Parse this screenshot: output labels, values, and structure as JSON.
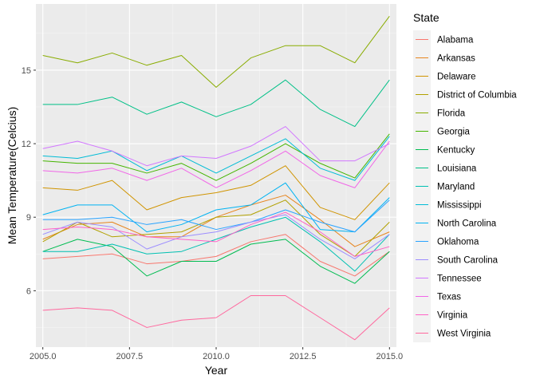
{
  "chart_data": {
    "type": "line",
    "xlabel": "Year",
    "ylabel": "Mean Temperature(Celcius)",
    "xlim": [
      2004.8,
      2015.2
    ],
    "ylim": [
      3.7,
      17.7
    ],
    "x_ticks": [
      2005.0,
      2007.5,
      2010.0,
      2012.5,
      2015.0
    ],
    "x_tick_labels": [
      "2005.0",
      "2007.5",
      "2010.0",
      "2012.5",
      "2015.0"
    ],
    "y_ticks": [
      6,
      9,
      12,
      15
    ],
    "y_tick_labels": [
      "6",
      "9",
      "12",
      "15"
    ],
    "grid": true,
    "panel_background": "#ebebeb",
    "legend": {
      "title": "State",
      "position": "right"
    },
    "x": [
      2005,
      2006,
      2007,
      2008,
      2009,
      2010,
      2011,
      2012,
      2013,
      2014,
      2015
    ],
    "series": [
      {
        "name": "Alabama",
        "color": "#F8766D",
        "values": [
          7.3,
          7.4,
          7.5,
          7.1,
          7.2,
          7.4,
          8.0,
          8.3,
          7.2,
          6.6,
          7.6
        ]
      },
      {
        "name": "Arkansas",
        "color": "#E7851E",
        "values": [
          8.1,
          8.7,
          8.8,
          8.2,
          8.2,
          9.0,
          9.5,
          9.9,
          8.9,
          7.8,
          8.4
        ]
      },
      {
        "name": "Delaware",
        "color": "#D09400",
        "values": [
          10.2,
          10.1,
          10.5,
          9.3,
          9.8,
          10.0,
          10.3,
          11.1,
          9.4,
          8.9,
          10.4
        ]
      },
      {
        "name": "District of Columbia",
        "color": "#B2A100",
        "values": [
          8.0,
          8.8,
          8.2,
          8.3,
          8.4,
          9.0,
          9.1,
          9.7,
          8.3,
          7.4,
          8.8
        ]
      },
      {
        "name": "Florida",
        "color": "#89AC00",
        "values": [
          15.6,
          15.3,
          15.7,
          15.2,
          15.6,
          14.3,
          15.5,
          16.0,
          16.0,
          15.3,
          17.2
        ]
      },
      {
        "name": "Georgia",
        "color": "#45B500",
        "values": [
          11.3,
          11.2,
          11.2,
          10.8,
          11.2,
          10.5,
          11.2,
          12.0,
          11.2,
          10.6,
          12.4
        ]
      },
      {
        "name": "Kentucky",
        "color": "#00BC51",
        "values": [
          7.6,
          8.1,
          7.8,
          6.6,
          7.2,
          7.2,
          7.9,
          8.1,
          7.0,
          6.3,
          7.6
        ]
      },
      {
        "name": "Louisiana",
        "color": "#00C087",
        "values": [
          13.6,
          13.6,
          13.9,
          13.2,
          13.7,
          13.1,
          13.6,
          14.6,
          13.4,
          12.7,
          14.6
        ]
      },
      {
        "name": "Maryland",
        "color": "#00C0B2",
        "values": [
          7.6,
          7.6,
          7.9,
          7.5,
          7.6,
          8.1,
          8.6,
          9.0,
          8.0,
          6.8,
          8.3
        ]
      },
      {
        "name": "Mississippi",
        "color": "#00BCD6",
        "values": [
          11.5,
          11.4,
          11.7,
          10.9,
          11.5,
          10.8,
          11.5,
          12.2,
          11.0,
          10.5,
          12.3
        ]
      },
      {
        "name": "North Carolina",
        "color": "#00B3F2",
        "values": [
          9.1,
          9.5,
          9.5,
          8.4,
          8.7,
          9.3,
          9.5,
          10.4,
          8.5,
          8.4,
          9.8
        ]
      },
      {
        "name": "Oklahoma",
        "color": "#29A3FF",
        "values": [
          8.9,
          8.9,
          9.0,
          8.7,
          8.9,
          8.5,
          8.8,
          9.3,
          8.8,
          8.4,
          9.7
        ]
      },
      {
        "name": "South Carolina",
        "color": "#9C8DFF",
        "values": [
          8.3,
          8.8,
          8.6,
          7.7,
          8.2,
          8.4,
          8.8,
          9.1,
          8.1,
          7.3,
          8.3
        ]
      },
      {
        "name": "Tennessee",
        "color": "#D277FF",
        "values": [
          11.8,
          12.1,
          11.7,
          11.1,
          11.5,
          11.4,
          11.9,
          12.7,
          11.3,
          11.3,
          12.0
        ]
      },
      {
        "name": "Texas",
        "color": "#F166E8",
        "values": [
          10.9,
          10.8,
          11.0,
          10.5,
          11.0,
          10.2,
          10.9,
          11.7,
          10.7,
          10.2,
          12.1
        ]
      },
      {
        "name": "Virginia",
        "color": "#FF61C7",
        "values": [
          8.5,
          8.6,
          8.5,
          8.2,
          8.1,
          8.0,
          8.7,
          9.2,
          8.4,
          7.4,
          7.8
        ]
      },
      {
        "name": "West Virginia",
        "color": "#FF689E",
        "values": [
          5.2,
          5.3,
          5.2,
          4.5,
          4.8,
          4.9,
          5.8,
          5.8,
          4.9,
          4.0,
          5.3
        ]
      }
    ]
  }
}
